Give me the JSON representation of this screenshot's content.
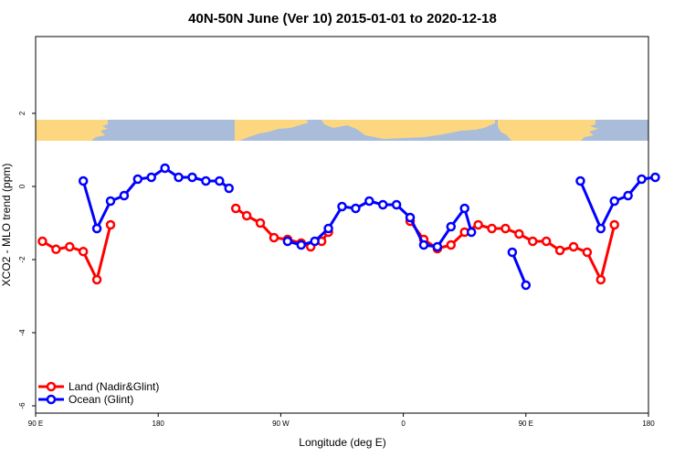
{
  "chart_data": {
    "type": "line",
    "title": "40N-50N June (Ver 10)   2015-01-01 to 2020-12-18",
    "xlabel": "Longitude (deg E)",
    "ylabel": "XCO2 - MLO trend (ppm)",
    "xlim": [
      90,
      540
    ],
    "ylim": [
      -6.2,
      4.1
    ],
    "x_ticks": [
      {
        "value": 90,
        "label": "90 E"
      },
      {
        "value": 180,
        "label": "180"
      },
      {
        "value": 270,
        "label": "90 W"
      },
      {
        "value": 360,
        "label": "0"
      },
      {
        "value": 450,
        "label": "90 E"
      },
      {
        "value": 540,
        "label": "180"
      }
    ],
    "y_ticks": [
      {
        "value": -6,
        "label": "-6"
      },
      {
        "value": -4,
        "label": "-4"
      },
      {
        "value": -2,
        "label": "-2"
      },
      {
        "value": 0,
        "label": "0"
      },
      {
        "value": 2,
        "label": "2"
      }
    ],
    "series": [
      {
        "name": "Land (Nadir&Glint)",
        "color": "#ff0000",
        "segments": [
          [
            [
              95,
              -1.5
            ],
            [
              105,
              -1.72
            ],
            [
              115,
              -1.65
            ],
            [
              125,
              -1.78
            ],
            [
              135,
              -2.55
            ],
            [
              145,
              -1.05
            ]
          ],
          [
            [
              237,
              -0.6
            ],
            [
              245,
              -0.8
            ],
            [
              255,
              -1.0
            ],
            [
              265,
              -1.4
            ],
            [
              275,
              -1.45
            ],
            [
              285,
              -1.55
            ],
            [
              292,
              -1.65
            ],
            [
              300,
              -1.5
            ],
            [
              305,
              -1.25
            ]
          ],
          [
            [
              365,
              -0.95
            ],
            [
              375,
              -1.45
            ],
            [
              385,
              -1.7
            ],
            [
              395,
              -1.6
            ],
            [
              405,
              -1.25
            ],
            [
              415,
              -1.05
            ],
            [
              425,
              -1.15
            ],
            [
              435,
              -1.15
            ],
            [
              445,
              -1.3
            ],
            [
              455,
              -1.5
            ],
            [
              465,
              -1.5
            ],
            [
              475,
              -1.75
            ],
            [
              485,
              -1.65
            ],
            [
              495,
              -1.8
            ],
            [
              505,
              -2.55
            ],
            [
              515,
              -1.05
            ]
          ]
        ]
      },
      {
        "name": "Ocean (Glint)",
        "color": "#0000ff",
        "segments": [
          [
            [
              125,
              0.15
            ],
            [
              135,
              -1.15
            ],
            [
              145,
              -0.4
            ],
            [
              155,
              -0.25
            ],
            [
              165,
              0.2
            ],
            [
              175,
              0.25
            ],
            [
              185,
              0.5
            ],
            [
              195,
              0.25
            ],
            [
              205,
              0.25
            ],
            [
              215,
              0.15
            ],
            [
              225,
              0.15
            ],
            [
              232,
              -0.05
            ]
          ],
          [
            [
              275,
              -1.5
            ],
            [
              285,
              -1.6
            ],
            [
              295,
              -1.5
            ],
            [
              305,
              -1.15
            ],
            [
              315,
              -0.55
            ],
            [
              325,
              -0.6
            ],
            [
              335,
              -0.4
            ],
            [
              345,
              -0.5
            ],
            [
              355,
              -0.5
            ],
            [
              365,
              -0.85
            ],
            [
              375,
              -1.6
            ],
            [
              385,
              -1.65
            ],
            [
              395,
              -1.1
            ],
            [
              405,
              -0.6
            ],
            [
              410,
              -1.25
            ]
          ],
          [
            [
              440,
              -1.8
            ],
            [
              450,
              -2.7
            ]
          ],
          [
            [
              490,
              0.15
            ],
            [
              505,
              -1.15
            ],
            [
              515,
              -0.4
            ],
            [
              525,
              -0.25
            ],
            [
              535,
              0.2
            ],
            [
              545,
              0.25
            ]
          ]
        ]
      }
    ],
    "legend_position": "bottom-left",
    "grid": false
  }
}
